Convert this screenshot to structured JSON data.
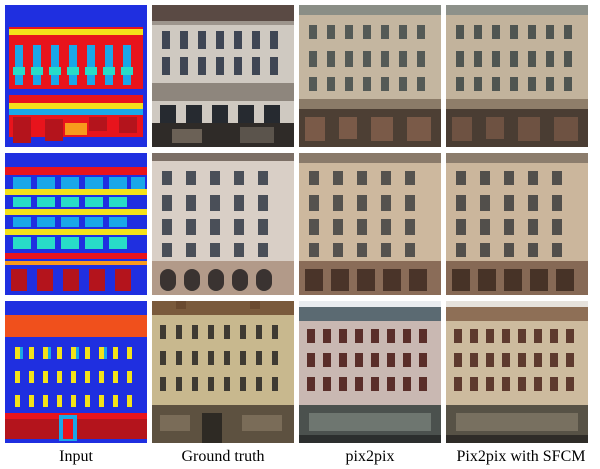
{
  "captions": [
    "Input",
    "Ground truth",
    "pix2pix",
    "Pix2pix with SFCM"
  ],
  "colors": {
    "label_background": "#1f2fe0",
    "label_wall": "#e8141c",
    "label_window": "#19a7e8",
    "label_sill": "#f4e21a",
    "label_balcony": "#28dcc8",
    "label_shop": "#b4141c",
    "label_door": "#f89a1c"
  }
}
